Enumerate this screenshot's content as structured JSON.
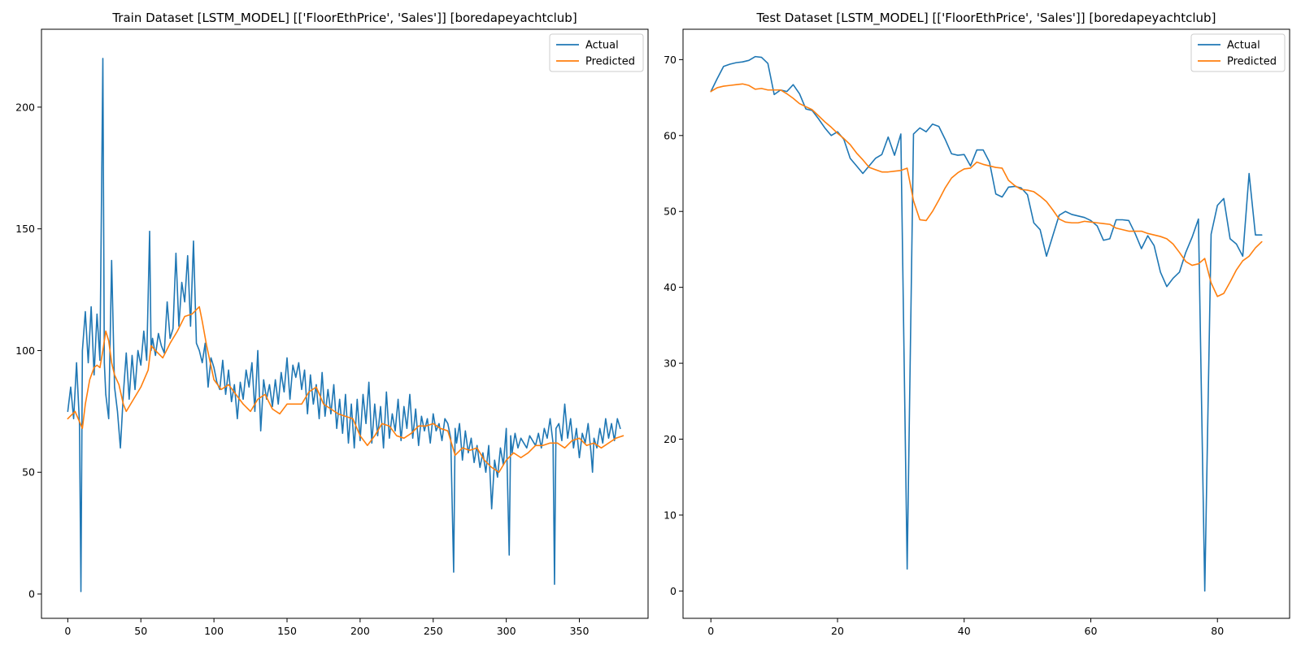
{
  "colors": {
    "actual": "#1f77b4",
    "predicted": "#ff7f0e",
    "axes": "#000000",
    "legend_border": "#cccccc"
  },
  "chart_data": [
    {
      "type": "line",
      "title": "Train Dataset [LSTM_MODEL] [['FloorEthPrice', 'Sales']] [boredapeyachtclub]",
      "xlabel": "",
      "ylabel": "",
      "xlim": [
        -18,
        397
      ],
      "ylim": [
        -10,
        232
      ],
      "xticks": [
        0,
        50,
        100,
        150,
        200,
        250,
        300,
        350
      ],
      "yticks": [
        0,
        50,
        100,
        150,
        200
      ],
      "legend": "top-right",
      "grid": false,
      "series": [
        {
          "name": "Actual",
          "color_key": "actual",
          "x": [
            0,
            2,
            4,
            6,
            8,
            9,
            10,
            12,
            14,
            16,
            18,
            20,
            22,
            24,
            25,
            26,
            28,
            30,
            32,
            34,
            36,
            38,
            40,
            42,
            44,
            46,
            48,
            50,
            52,
            54,
            56,
            57,
            58,
            60,
            62,
            64,
            66,
            68,
            70,
            72,
            74,
            76,
            78,
            80,
            82,
            84,
            86,
            88,
            90,
            92,
            94,
            96,
            98,
            100,
            102,
            104,
            106,
            108,
            110,
            112,
            114,
            116,
            118,
            120,
            122,
            124,
            126,
            128,
            130,
            132,
            134,
            136,
            138,
            140,
            142,
            144,
            146,
            148,
            150,
            152,
            154,
            156,
            158,
            160,
            162,
            164,
            166,
            168,
            170,
            172,
            174,
            176,
            178,
            180,
            182,
            184,
            186,
            188,
            190,
            192,
            194,
            196,
            198,
            200,
            202,
            204,
            206,
            208,
            210,
            212,
            214,
            216,
            218,
            220,
            222,
            224,
            226,
            228,
            230,
            232,
            234,
            236,
            238,
            240,
            242,
            244,
            246,
            248,
            250,
            252,
            254,
            256,
            258,
            260,
            262,
            264,
            265,
            266,
            268,
            270,
            272,
            274,
            276,
            278,
            280,
            282,
            284,
            286,
            288,
            290,
            292,
            294,
            296,
            298,
            300,
            302,
            303,
            304,
            306,
            308,
            310,
            312,
            314,
            316,
            318,
            320,
            322,
            324,
            326,
            328,
            330,
            332,
            333,
            334,
            336,
            338,
            340,
            342,
            344,
            346,
            348,
            350,
            352,
            354,
            356,
            358,
            359,
            360,
            362,
            364,
            366,
            368,
            370,
            372,
            374,
            376,
            378
          ],
          "y": [
            75,
            85,
            72,
            95,
            70,
            1,
            100,
            116,
            95,
            118,
            90,
            115,
            96,
            220,
            95,
            82,
            72,
            137,
            85,
            75,
            60,
            82,
            99,
            80,
            98,
            84,
            100,
            94,
            108,
            96,
            149,
            100,
            105,
            98,
            107,
            102,
            99,
            120,
            105,
            109,
            140,
            110,
            128,
            120,
            139,
            110,
            145,
            103,
            100,
            95,
            103,
            85,
            97,
            93,
            87,
            84,
            96,
            82,
            92,
            79,
            86,
            72,
            87,
            80,
            92,
            85,
            95,
            75,
            100,
            67,
            88,
            80,
            86,
            77,
            88,
            78,
            91,
            83,
            97,
            80,
            94,
            89,
            95,
            84,
            92,
            74,
            90,
            78,
            86,
            72,
            91,
            73,
            84,
            74,
            86,
            68,
            80,
            66,
            82,
            62,
            78,
            60,
            80,
            63,
            82,
            70,
            87,
            62,
            78,
            65,
            77,
            60,
            83,
            64,
            74,
            67,
            80,
            63,
            77,
            68,
            82,
            64,
            76,
            61,
            73,
            67,
            72,
            62,
            74,
            67,
            70,
            63,
            72,
            70,
            64,
            9,
            68,
            62,
            70,
            55,
            67,
            58,
            64,
            54,
            61,
            52,
            58,
            50,
            61,
            35,
            55,
            48,
            60,
            53,
            68,
            16,
            65,
            58,
            66,
            60,
            64,
            62,
            60,
            65,
            63,
            61,
            66,
            60,
            68,
            64,
            72,
            62,
            4,
            68,
            70,
            63,
            78,
            64,
            72,
            60,
            68,
            56,
            66,
            62,
            70,
            58,
            50,
            64,
            60,
            68,
            62,
            72,
            64,
            70,
            63,
            72,
            68
          ]
        },
        {
          "name": "Predicted",
          "color_key": "predicted",
          "x": [
            0,
            5,
            10,
            12,
            15,
            18,
            20,
            22,
            24,
            26,
            28,
            30,
            32,
            35,
            38,
            40,
            45,
            50,
            55,
            57,
            60,
            65,
            70,
            75,
            80,
            85,
            90,
            92,
            95,
            100,
            105,
            110,
            115,
            120,
            125,
            130,
            135,
            140,
            145,
            150,
            155,
            160,
            165,
            170,
            175,
            180,
            185,
            190,
            195,
            200,
            205,
            210,
            215,
            220,
            225,
            230,
            235,
            240,
            245,
            250,
            255,
            260,
            265,
            270,
            275,
            280,
            285,
            290,
            295,
            300,
            305,
            310,
            315,
            320,
            325,
            330,
            335,
            340,
            345,
            350,
            355,
            360,
            365,
            370,
            375,
            380
          ],
          "y": [
            72,
            75,
            68,
            78,
            88,
            93,
            94,
            93,
            100,
            108,
            104,
            95,
            90,
            86,
            78,
            75,
            80,
            85,
            92,
            102,
            100,
            97,
            103,
            108,
            114,
            115,
            118,
            112,
            102,
            88,
            84,
            86,
            82,
            78,
            75,
            80,
            82,
            76,
            74,
            78,
            78,
            78,
            83,
            85,
            78,
            76,
            74,
            73,
            72,
            65,
            61,
            65,
            70,
            69,
            65,
            64,
            66,
            69,
            69,
            70,
            68,
            67,
            57,
            60,
            59,
            60,
            55,
            52,
            50,
            55,
            58,
            56,
            58,
            61,
            61,
            62,
            62,
            60,
            63,
            64,
            61,
            62,
            60,
            62,
            64,
            65
          ]
        }
      ]
    },
    {
      "type": "line",
      "title": "Test Dataset [LSTM_MODEL] [['FloorEthPrice', 'Sales']] [boredapeyachtclub]",
      "xlabel": "",
      "ylabel": "",
      "xlim": [
        -4.4,
        91.4
      ],
      "ylim": [
        -3.6,
        74
      ],
      "xticks": [
        0,
        20,
        40,
        60,
        80
      ],
      "yticks": [
        0,
        10,
        20,
        30,
        40,
        50,
        60,
        70
      ],
      "legend": "top-right",
      "grid": false,
      "series": [
        {
          "name": "Actual",
          "color_key": "actual",
          "x": [
            0,
            1,
            2,
            3,
            4,
            5,
            6,
            7,
            8,
            9,
            10,
            11,
            12,
            13,
            14,
            15,
            16,
            17,
            18,
            19,
            20,
            21,
            22,
            23,
            24,
            25,
            26,
            27,
            28,
            29,
            30,
            31,
            32,
            33,
            34,
            35,
            36,
            37,
            38,
            39,
            40,
            41,
            42,
            43,
            44,
            45,
            46,
            47,
            48,
            49,
            50,
            51,
            52,
            53,
            54,
            55,
            56,
            57,
            58,
            59,
            60,
            61,
            62,
            63,
            64,
            65,
            66,
            67,
            68,
            69,
            70,
            71,
            72,
            73,
            74,
            75,
            76,
            77,
            78,
            79,
            80,
            81,
            82,
            83,
            84,
            85,
            86,
            87
          ],
          "y": [
            65.8,
            67.5,
            69.1,
            69.4,
            69.6,
            69.7,
            69.9,
            70.4,
            70.3,
            69.5,
            65.4,
            66,
            65.8,
            66.7,
            65.5,
            63.5,
            63.3,
            62.2,
            61,
            60,
            60.5,
            59.5,
            57,
            56,
            55,
            56,
            57,
            57.5,
            59.8,
            57.4,
            60.2,
            2.9,
            60.2,
            61,
            60.5,
            61.5,
            61.2,
            59.5,
            57.6,
            57.4,
            57.5,
            56,
            58.1,
            58.1,
            56.5,
            52.3,
            51.9,
            53.2,
            53.3,
            53.1,
            52.2,
            48.5,
            47.6,
            44.1,
            46.8,
            49.5,
            50,
            49.6,
            49.4,
            49.2,
            48.8,
            48.1,
            46.2,
            46.4,
            48.9,
            48.9,
            48.8,
            47.1,
            45.1,
            46.8,
            45.5,
            42,
            40.1,
            41.2,
            42,
            44.6,
            46.6,
            49,
            0,
            47,
            50.8,
            51.7,
            46.4,
            45.7,
            44.1,
            55,
            46.9,
            46.9
          ]
        },
        {
          "name": "Predicted",
          "color_key": "predicted",
          "x": [
            0,
            1,
            2,
            3,
            4,
            5,
            6,
            7,
            8,
            9,
            10,
            11,
            12,
            13,
            14,
            15,
            16,
            17,
            18,
            19,
            20,
            21,
            22,
            23,
            24,
            25,
            26,
            27,
            28,
            29,
            30,
            31,
            32,
            33,
            34,
            35,
            36,
            37,
            38,
            39,
            40,
            41,
            42,
            43,
            44,
            45,
            46,
            47,
            48,
            49,
            50,
            51,
            52,
            53,
            54,
            55,
            56,
            57,
            58,
            59,
            60,
            61,
            62,
            63,
            64,
            65,
            66,
            67,
            68,
            69,
            70,
            71,
            72,
            73,
            74,
            75,
            76,
            77,
            78,
            79,
            80,
            81,
            82,
            83,
            84,
            85,
            86,
            87
          ],
          "y": [
            65.8,
            66.3,
            66.5,
            66.6,
            66.7,
            66.8,
            66.6,
            66.1,
            66.2,
            66,
            66,
            66,
            65.5,
            64.9,
            64.2,
            63.8,
            63.4,
            62.6,
            61.8,
            61.1,
            60.3,
            59.6,
            58.8,
            57.7,
            56.8,
            55.8,
            55.5,
            55.2,
            55.2,
            55.3,
            55.4,
            55.7,
            51.4,
            48.9,
            48.8,
            50,
            51.5,
            53.1,
            54.4,
            55.1,
            55.6,
            55.7,
            56.5,
            56.2,
            56,
            55.8,
            55.7,
            54.1,
            53.4,
            52.9,
            52.8,
            52.6,
            52,
            51.3,
            50.2,
            49,
            48.6,
            48.5,
            48.5,
            48.7,
            48.6,
            48.5,
            48.4,
            48.3,
            47.8,
            47.6,
            47.4,
            47.4,
            47.4,
            47.1,
            46.9,
            46.7,
            46.4,
            45.7,
            44.6,
            43.4,
            42.9,
            43.1,
            43.8,
            40.6,
            38.8,
            39.2,
            40.7,
            42.3,
            43.5,
            44.1,
            45.2,
            46
          ]
        }
      ]
    }
  ]
}
